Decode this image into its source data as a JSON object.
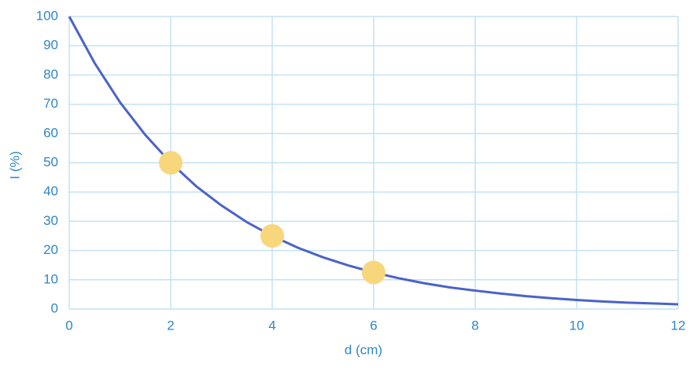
{
  "chart_data": {
    "type": "line",
    "x_label": "d (cm)",
    "y_label": "I (%)",
    "xlim": [
      0,
      12
    ],
    "xticks": [
      0,
      2,
      4,
      6,
      8,
      10,
      12
    ],
    "ylim": [
      0,
      100
    ],
    "yticks": [
      0,
      10,
      20,
      30,
      40,
      50,
      60,
      70,
      80,
      90,
      100
    ],
    "grid": true,
    "series": [
      {
        "type": "line",
        "color": "#4a63c8",
        "x": [
          0,
          0.5,
          1,
          1.5,
          2,
          2.5,
          3,
          3.5,
          4,
          4.5,
          5,
          5.5,
          6,
          6.5,
          7,
          7.5,
          8,
          8.5,
          9,
          9.5,
          10,
          10.5,
          11,
          11.5,
          12
        ],
        "values": [
          100,
          84.1,
          70.7,
          59.5,
          50,
          42.0,
          35.4,
          29.7,
          25,
          21.0,
          17.7,
          14.9,
          12.5,
          10.5,
          8.8,
          7.4,
          6.3,
          5.3,
          4.4,
          3.7,
          3.1,
          2.6,
          2.2,
          1.9,
          1.6
        ]
      },
      {
        "type": "scatter",
        "color": "#f8d77c",
        "x": [
          2,
          4,
          6
        ],
        "values": [
          50,
          25,
          12.5
        ]
      }
    ]
  }
}
